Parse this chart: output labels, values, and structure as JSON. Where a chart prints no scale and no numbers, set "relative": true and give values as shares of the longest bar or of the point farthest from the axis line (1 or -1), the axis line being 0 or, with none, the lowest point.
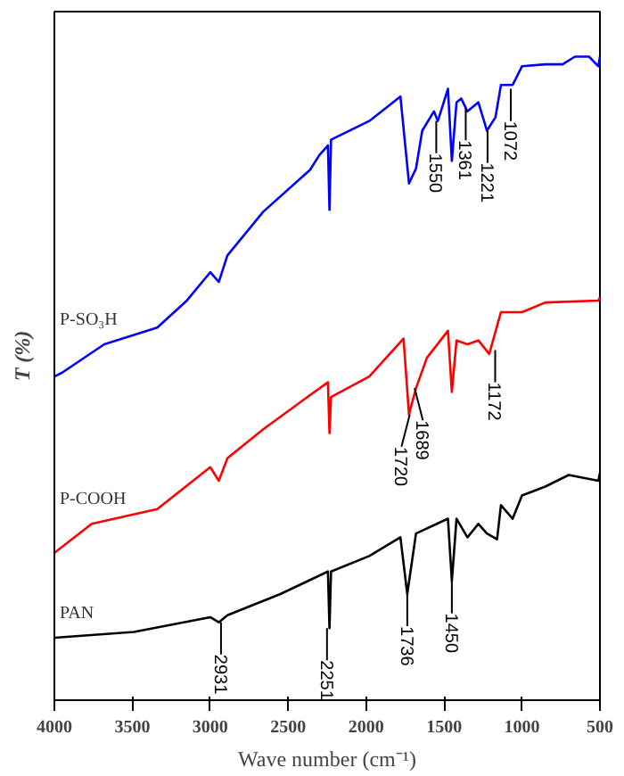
{
  "chart_data": {
    "type": "line",
    "relative": true,
    "xlabel": "Wave number (cm⁻¹)",
    "ylabel": "T (%)",
    "xlim": [
      4000,
      500
    ],
    "xticks": [
      4000,
      3500,
      3000,
      2500,
      2000,
      1500,
      1000,
      500
    ],
    "tick_labels": "x",
    "grid": false,
    "legend": false,
    "marker": "none",
    "line_style": "solid",
    "series": [
      {
        "name": "P-SO₃H",
        "color": "#0000ff",
        "x": [
          4000,
          3950,
          3680,
          3340,
          3150,
          3000,
          2945,
          2890,
          2660,
          2360,
          2300,
          2245,
          2235,
          2225,
          1980,
          1780,
          1725,
          1680,
          1640,
          1565,
          1540,
          1475,
          1450,
          1420,
          1390,
          1350,
          1280,
          1225,
          1170,
          1135,
          1060,
          1000,
          850,
          740,
          660,
          570,
          510,
          500
        ],
        "values": [
          0.503,
          0.509,
          0.553,
          0.579,
          0.621,
          0.665,
          0.65,
          0.691,
          0.759,
          0.824,
          0.847,
          0.862,
          0.762,
          0.871,
          0.9,
          0.938,
          0.803,
          0.826,
          0.885,
          0.915,
          0.9,
          0.95,
          0.838,
          0.929,
          0.935,
          0.915,
          0.929,
          0.885,
          0.906,
          0.956,
          0.956,
          0.985,
          0.988,
          0.988,
          1.0,
          1.0,
          0.985,
          1.0
        ]
      },
      {
        "name": "P-COOH",
        "color": "#ff0000",
        "x": [
          4000,
          3760,
          3340,
          3000,
          2945,
          2890,
          2660,
          2360,
          2245,
          2235,
          2225,
          1980,
          1760,
          1725,
          1680,
          1610,
          1475,
          1450,
          1420,
          1350,
          1280,
          1210,
          1135,
          1000,
          850,
          510,
          500
        ],
        "values": [
          0.229,
          0.274,
          0.297,
          0.362,
          0.341,
          0.376,
          0.421,
          0.474,
          0.494,
          0.415,
          0.471,
          0.503,
          0.562,
          0.444,
          0.485,
          0.532,
          0.574,
          0.479,
          0.559,
          0.553,
          0.559,
          0.538,
          0.603,
          0.603,
          0.618,
          0.621,
          0.626
        ]
      },
      {
        "name": "PAN",
        "color": "#000000",
        "x": [
          4000,
          3490,
          3000,
          2945,
          2890,
          2550,
          2245,
          2235,
          2225,
          1980,
          1780,
          1736,
          1680,
          1475,
          1450,
          1420,
          1350,
          1280,
          1225,
          1160,
          1135,
          1060,
          1000,
          850,
          700,
          510,
          500
        ],
        "values": [
          0.097,
          0.106,
          0.129,
          0.121,
          0.132,
          0.165,
          0.2,
          0.112,
          0.2,
          0.224,
          0.253,
          0.165,
          0.259,
          0.282,
          0.185,
          0.282,
          0.253,
          0.274,
          0.259,
          0.25,
          0.303,
          0.282,
          0.318,
          0.332,
          0.35,
          0.341,
          0.353
        ]
      }
    ],
    "annotations": [
      {
        "text": "1550",
        "x": 1550,
        "y": 0.9
      },
      {
        "text": "1361",
        "x": 1361,
        "y": 0.92
      },
      {
        "text": "1221",
        "x": 1221,
        "y": 0.885
      },
      {
        "text": "1072",
        "x": 1072,
        "y": 0.95
      },
      {
        "text": "1720",
        "x": 1720,
        "y": 0.444
      },
      {
        "text": "1689",
        "x": 1689,
        "y": 0.485
      },
      {
        "text": "1172",
        "x": 1172,
        "y": 0.544
      },
      {
        "text": "2931",
        "x": 2931,
        "y": 0.121
      },
      {
        "text": "2251",
        "x": 2251,
        "y": 0.112
      },
      {
        "text": "1736",
        "x": 1736,
        "y": 0.165
      },
      {
        "text": "1450",
        "x": 1450,
        "y": 0.185
      }
    ]
  }
}
